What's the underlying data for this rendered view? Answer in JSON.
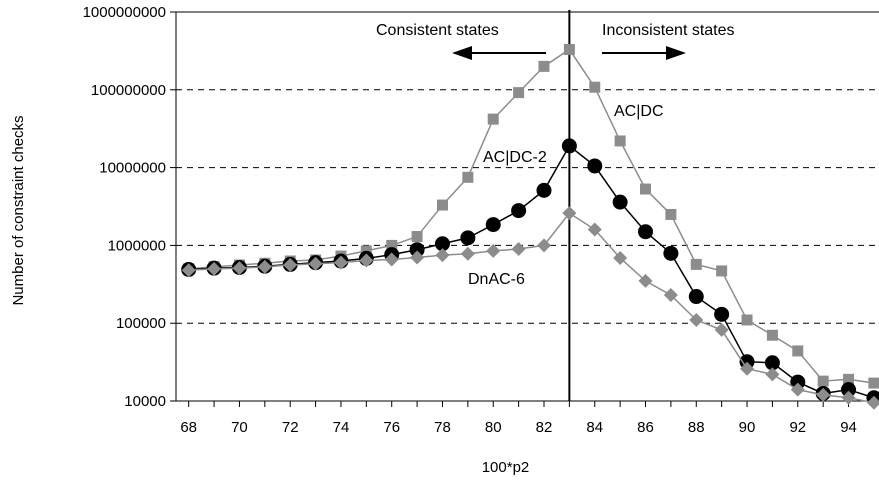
{
  "chart_data": {
    "type": "line",
    "title": "",
    "xlabel": "100*p2",
    "ylabel": "Number of constraint checks",
    "xlim": [
      67.5,
      95.2
    ],
    "ylim": [
      10000,
      1000000000
    ],
    "yscale": "log",
    "x_ticks": [
      68,
      70,
      72,
      74,
      76,
      78,
      80,
      82,
      84,
      86,
      88,
      90,
      92,
      94
    ],
    "y_ticks": [
      10000,
      100000,
      1000000,
      10000000,
      100000000,
      1000000000
    ],
    "y_tick_labels": [
      "10000",
      "100000",
      "1000000",
      "10000000",
      "100000000",
      "1000000000"
    ],
    "grid": {
      "y_major": "dashed",
      "x": false
    },
    "threshold_line_x": 83,
    "annotations": {
      "consistent": "Consistent states",
      "inconsistent": "Inconsistent states"
    },
    "x": [
      68,
      69,
      70,
      71,
      72,
      73,
      74,
      75,
      76,
      77,
      78,
      79,
      80,
      81,
      82,
      83,
      84,
      85,
      86,
      87,
      88,
      89,
      90,
      91,
      92,
      93,
      94,
      95
    ],
    "series": [
      {
        "name": "AC|DC",
        "color": "#8c8c8c",
        "marker": "square",
        "values": [
          500000,
          530000,
          560000,
          590000,
          630000,
          650000,
          730000,
          850000,
          1000000,
          1300000,
          3300000,
          7500000,
          42000000,
          92000000,
          200000000,
          330000000,
          108000000,
          22000000,
          5300000,
          2500000,
          570000,
          470000,
          110000,
          70000,
          44000,
          18000,
          19000,
          17000
        ]
      },
      {
        "name": "AC|DC-2",
        "color": "#000000",
        "marker": "circle",
        "values": [
          490000,
          510000,
          520000,
          540000,
          570000,
          600000,
          630000,
          680000,
          760000,
          880000,
          1050000,
          1250000,
          1850000,
          2800000,
          5100000,
          19000000,
          10500000,
          3600000,
          1500000,
          790000,
          220000,
          130000,
          32000,
          31000,
          17500,
          12500,
          14000,
          11000
        ]
      },
      {
        "name": "DnAC-6",
        "color": "#8c8c8c",
        "marker": "diamond",
        "values": [
          480000,
          500000,
          510000,
          530000,
          560000,
          580000,
          600000,
          640000,
          660000,
          700000,
          750000,
          780000,
          850000,
          900000,
          1000000,
          2600000,
          1600000,
          690000,
          350000,
          230000,
          110000,
          82000,
          26000,
          22000,
          14000,
          12000,
          11000,
          9500
        ]
      }
    ],
    "series_label_positions": [
      "AC|DC",
      "AC|DC-2",
      "DnAC-6"
    ]
  }
}
